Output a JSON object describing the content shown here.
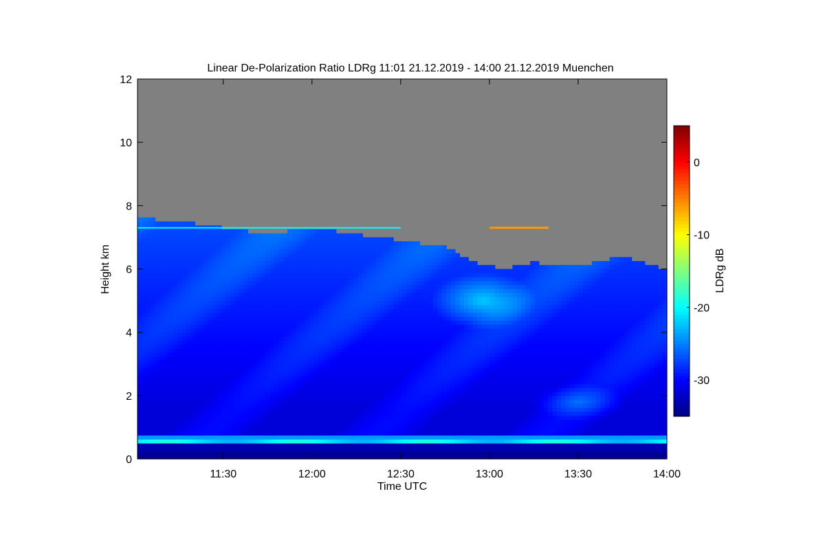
{
  "chart_data": {
    "type": "heatmap",
    "title": "Linear De-Polarization Ratio LDRg   11:01 21.12.2019 - 14:00 21.12.2019 Muenchen",
    "xlabel": "Time UTC",
    "ylabel": "Height km",
    "colorbar_label": "LDRg dB",
    "x_tick_labels": [
      "11:30",
      "12:00",
      "12:30",
      "13:00",
      "13:30",
      "14:00"
    ],
    "x_tick_minutes": [
      30,
      60,
      90,
      120,
      150,
      180
    ],
    "xlim_minutes_after_11_00": [
      1,
      180
    ],
    "y_tick_labels": [
      "0",
      "2",
      "4",
      "6",
      "8",
      "10",
      "12"
    ],
    "ylim": [
      0,
      12
    ],
    "colorbar_tick_labels": [
      "0",
      "-10",
      "-20",
      "-30"
    ],
    "colorbar_range": [
      -35,
      5
    ],
    "no_data_color": "#808080",
    "cloud_top_km": [
      {
        "time": "11:01",
        "height": 7.6
      },
      {
        "time": "11:15",
        "height": 7.5
      },
      {
        "time": "11:30",
        "height": 7.3
      },
      {
        "time": "11:45",
        "height": 7.1
      },
      {
        "time": "12:00",
        "height": 7.3
      },
      {
        "time": "12:15",
        "height": 7.1
      },
      {
        "time": "12:30",
        "height": 6.9
      },
      {
        "time": "12:45",
        "height": 6.7
      },
      {
        "time": "12:55",
        "height": 6.2
      },
      {
        "time": "13:05",
        "height": 6.0
      },
      {
        "time": "13:15",
        "height": 6.2
      },
      {
        "time": "13:30",
        "height": 6.1
      },
      {
        "time": "13:45",
        "height": 6.4
      },
      {
        "time": "14:00",
        "height": 6.0
      }
    ],
    "boundary_layer_band_km": [
      0.4,
      0.7
    ],
    "thin_layer_height_km": 7.3
  }
}
